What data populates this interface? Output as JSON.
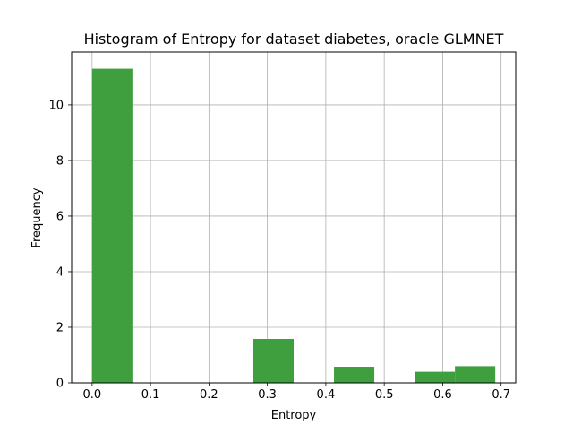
{
  "chart_data": {
    "type": "bar",
    "subtype": "histogram",
    "title": "Histogram of Entropy for dataset diabetes, oracle GLMNET",
    "xlabel": "Entropy",
    "ylabel": "Frequency",
    "xlim": [
      -0.035,
      0.725
    ],
    "ylim": [
      0,
      11.9
    ],
    "xticks": [
      {
        "value": 0.0,
        "label": "0.0"
      },
      {
        "value": 0.1,
        "label": "0.1"
      },
      {
        "value": 0.2,
        "label": "0.2"
      },
      {
        "value": 0.3,
        "label": "0.3"
      },
      {
        "value": 0.4,
        "label": "0.4"
      },
      {
        "value": 0.5,
        "label": "0.5"
      },
      {
        "value": 0.6,
        "label": "0.6"
      },
      {
        "value": 0.7,
        "label": "0.7"
      }
    ],
    "yticks": [
      {
        "value": 0,
        "label": "0"
      },
      {
        "value": 2,
        "label": "2"
      },
      {
        "value": 4,
        "label": "4"
      },
      {
        "value": 6,
        "label": "6"
      },
      {
        "value": 8,
        "label": "8"
      },
      {
        "value": 10,
        "label": "10"
      }
    ],
    "grid": true,
    "bar_color": "#3f9f3f",
    "bins": [
      {
        "start": 0.0,
        "end": 0.069,
        "value": 11.3
      },
      {
        "start": 0.069,
        "end": 0.138,
        "value": 0
      },
      {
        "start": 0.138,
        "end": 0.207,
        "value": 0
      },
      {
        "start": 0.207,
        "end": 0.276,
        "value": 0
      },
      {
        "start": 0.276,
        "end": 0.345,
        "value": 1.58
      },
      {
        "start": 0.345,
        "end": 0.414,
        "value": 0
      },
      {
        "start": 0.414,
        "end": 0.483,
        "value": 0.58
      },
      {
        "start": 0.483,
        "end": 0.552,
        "value": 0
      },
      {
        "start": 0.552,
        "end": 0.621,
        "value": 0.4
      },
      {
        "start": 0.621,
        "end": 0.69,
        "value": 0.6
      }
    ]
  }
}
